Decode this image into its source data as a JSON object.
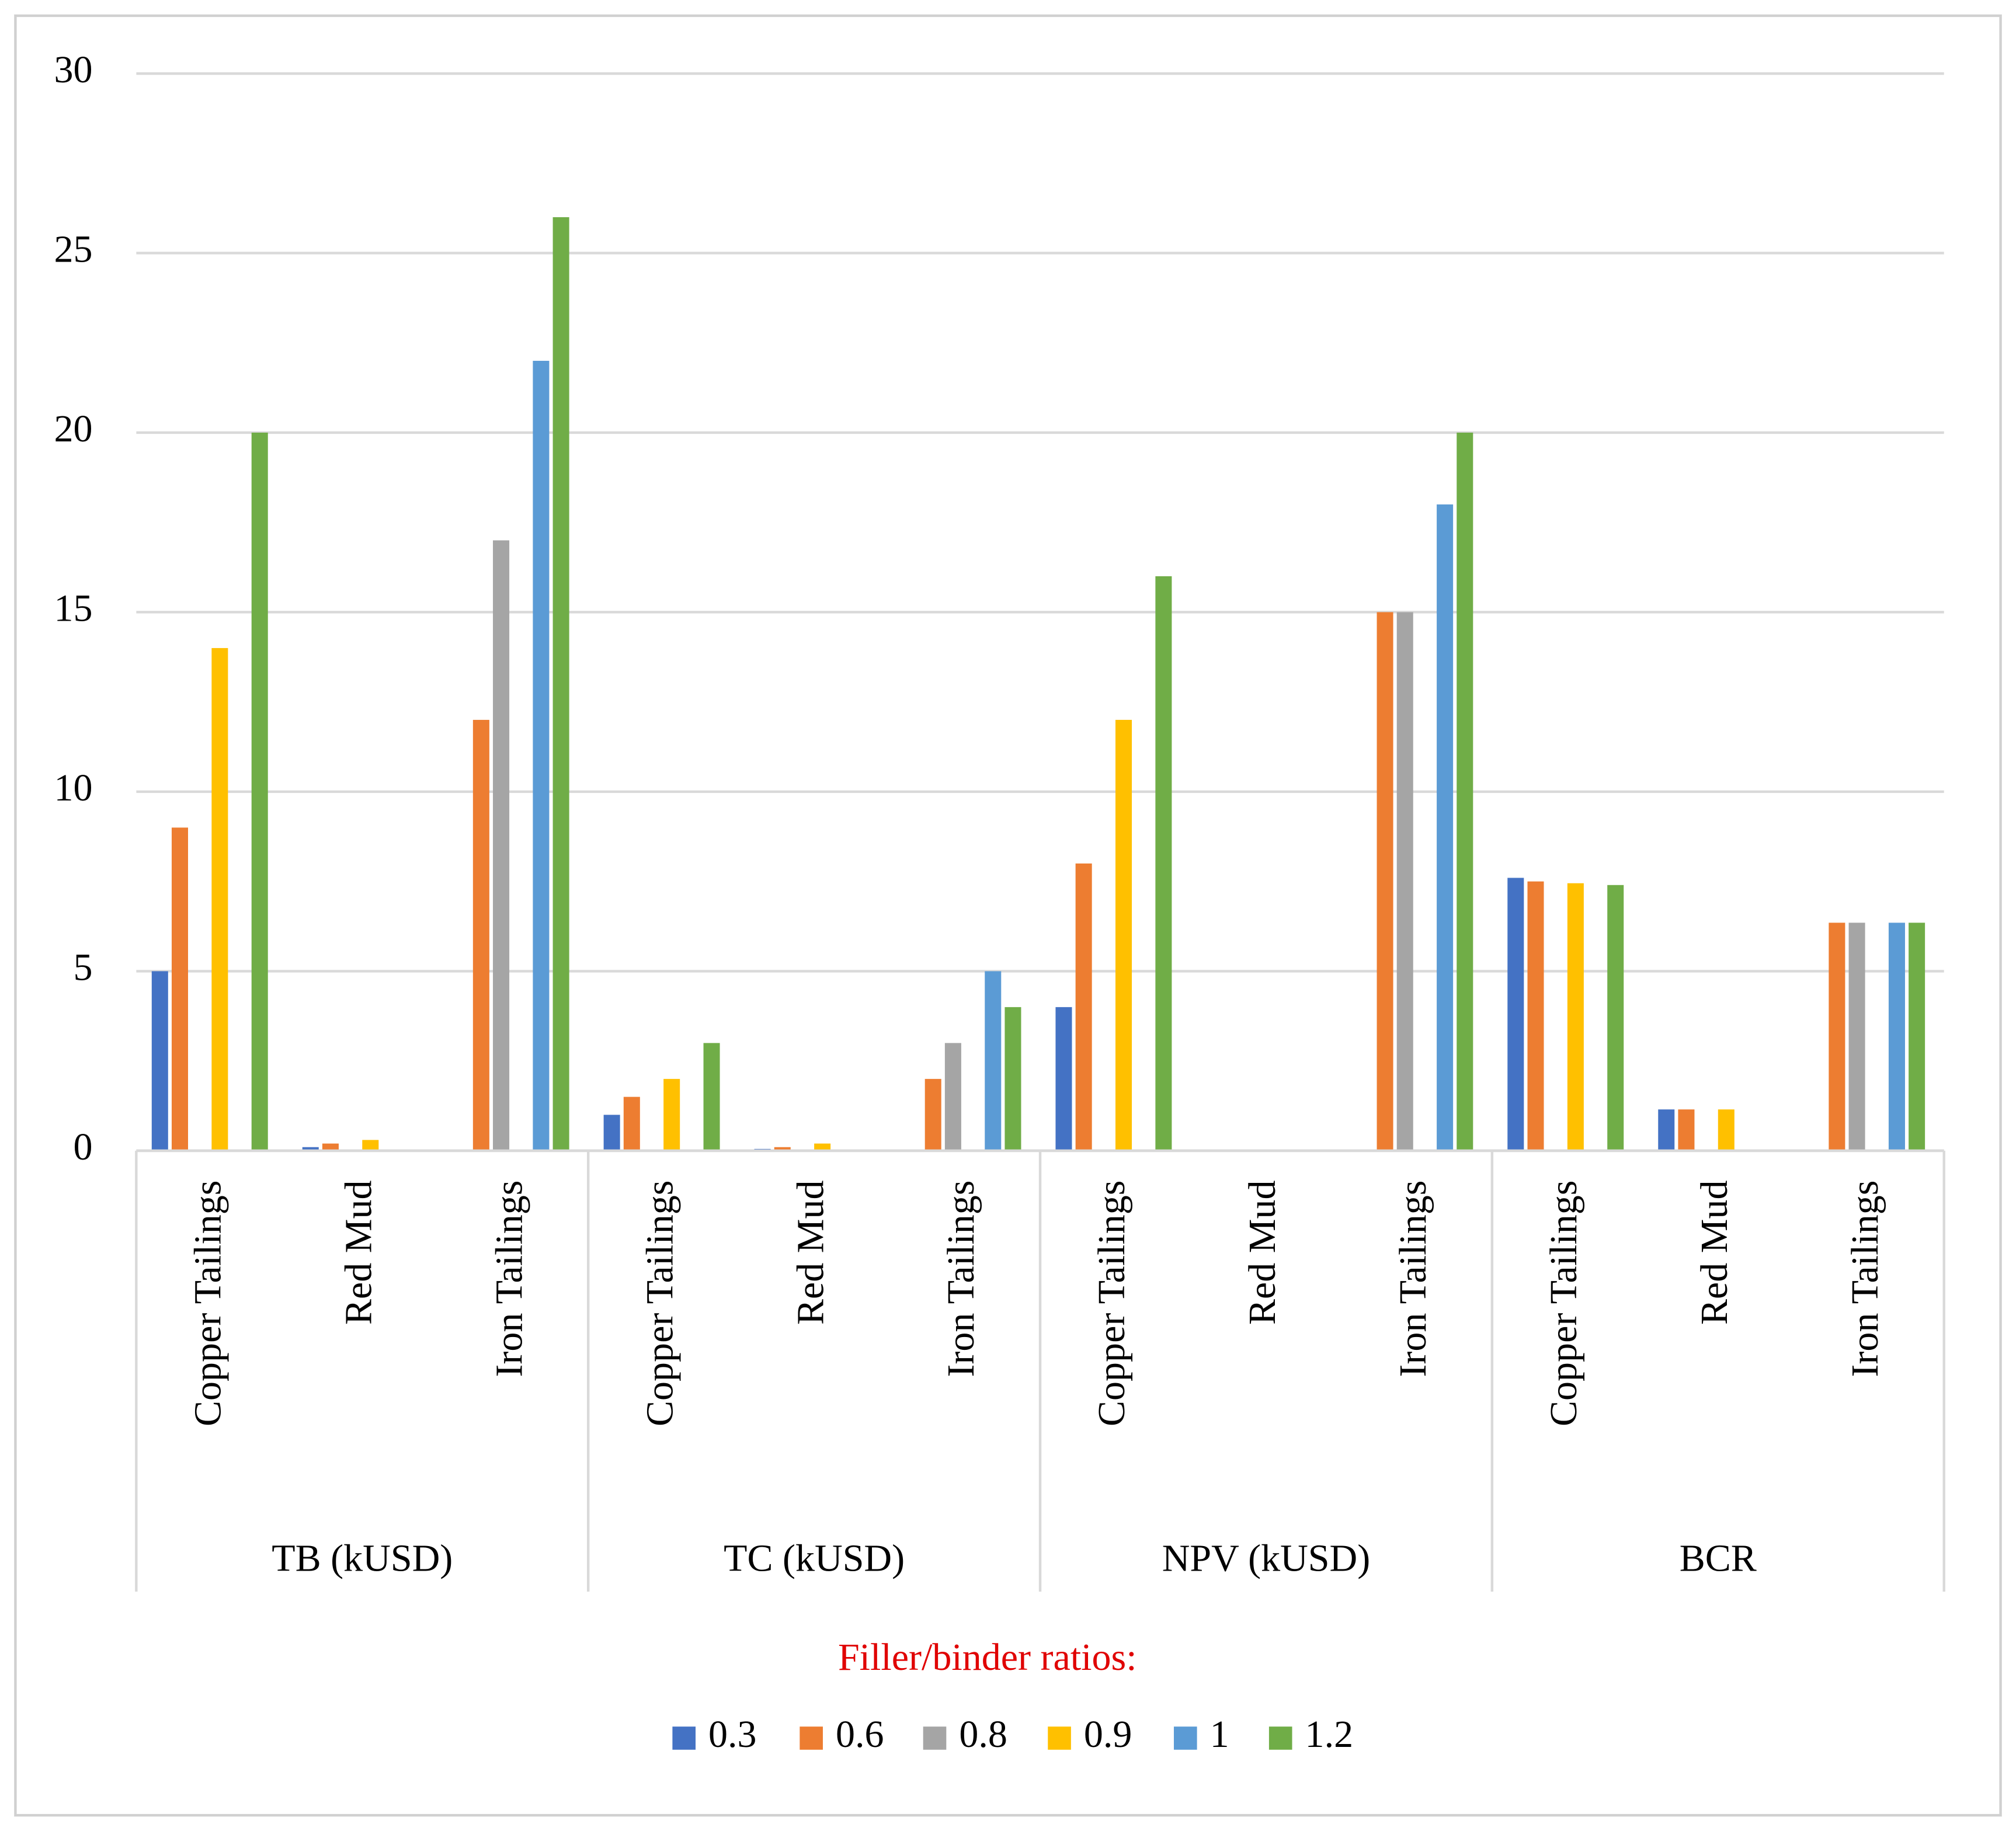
{
  "chart_data": {
    "type": "bar",
    "groups": [
      "TB (kUSD)",
      "TC (kUSD)",
      "NPV (kUSD)",
      "BCR"
    ],
    "categories": [
      "Copper Tailings",
      "Red Mud",
      "Iron Tailings",
      "Copper Tailings",
      "Red Mud",
      "Iron Tailings",
      "Copper Tailings",
      "Red Mud",
      "Iron Tailings",
      "Copper Tailings",
      "Red Mud",
      "Iron Tailings"
    ],
    "legend_title": "Filler/binder ratios:",
    "legend": "bottom",
    "grid": true,
    "ylim": [
      0,
      30
    ],
    "yticks": [
      0,
      5,
      10,
      15,
      20,
      25,
      30
    ],
    "series": [
      {
        "name": "0.3",
        "color": "#4472c4",
        "values": [
          5,
          0.1,
          null,
          1,
          0.05,
          null,
          4,
          null,
          null,
          7.6,
          1.15,
          null
        ]
      },
      {
        "name": "0.6",
        "color": "#ed7d31",
        "values": [
          9,
          0.2,
          12,
          1.5,
          0.1,
          2,
          8,
          null,
          15,
          7.5,
          1.15,
          6.35
        ]
      },
      {
        "name": "0.8",
        "color": "#a5a5a5",
        "values": [
          null,
          null,
          17,
          null,
          null,
          3,
          null,
          null,
          15,
          null,
          null,
          6.35
        ]
      },
      {
        "name": "0.9",
        "color": "#ffc000",
        "values": [
          14,
          0.3,
          null,
          2,
          0.2,
          null,
          12,
          null,
          null,
          7.45,
          1.15,
          null
        ]
      },
      {
        "name": "1",
        "color": "#5b9bd5",
        "values": [
          null,
          null,
          22,
          null,
          null,
          5,
          null,
          null,
          18,
          null,
          null,
          6.35
        ]
      },
      {
        "name": "1.2",
        "color": "#70ad47",
        "values": [
          20,
          null,
          26,
          3,
          null,
          4,
          16,
          null,
          20,
          7.4,
          null,
          6.35
        ]
      }
    ]
  }
}
